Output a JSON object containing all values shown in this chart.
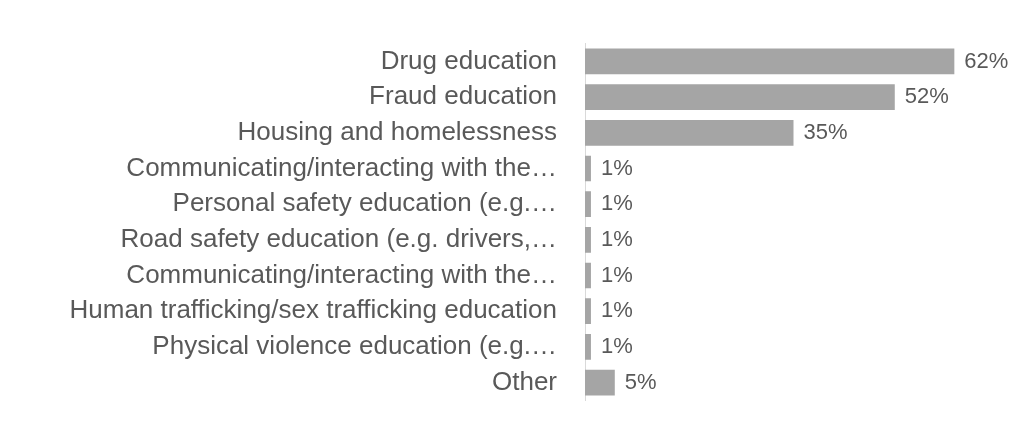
{
  "chart_data": {
    "type": "bar",
    "orientation": "horizontal",
    "categories": [
      "Drug education",
      "Fraud education",
      "Housing and homelessness",
      "Communicating/interacting with the…",
      "Personal safety education (e.g.…",
      "Road safety education (e.g. drivers,…",
      "Communicating/interacting with the…",
      "Human trafficking/sex trafficking education",
      "Physical violence education (e.g.…",
      "Other"
    ],
    "values": [
      62,
      52,
      35,
      1,
      1,
      1,
      1,
      1,
      1,
      5
    ],
    "value_labels": [
      "62%",
      "52%",
      "35%",
      "1%",
      "1%",
      "1%",
      "1%",
      "1%",
      "1%",
      "5%"
    ],
    "color": "#a5a5a5",
    "legend": false
  }
}
